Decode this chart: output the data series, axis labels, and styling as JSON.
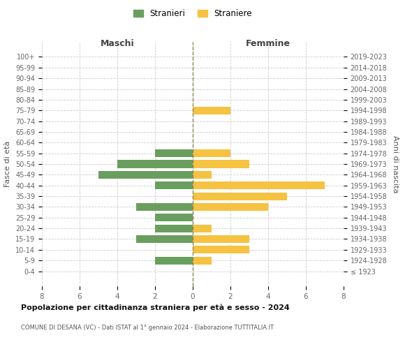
{
  "age_groups": [
    "100+",
    "95-99",
    "90-94",
    "85-89",
    "80-84",
    "75-79",
    "70-74",
    "65-69",
    "60-64",
    "55-59",
    "50-54",
    "45-49",
    "40-44",
    "35-39",
    "30-34",
    "25-29",
    "20-24",
    "15-19",
    "10-14",
    "5-9",
    "0-4"
  ],
  "birth_years": [
    "≤ 1923",
    "1924-1928",
    "1929-1933",
    "1934-1938",
    "1939-1943",
    "1944-1948",
    "1949-1953",
    "1954-1958",
    "1959-1963",
    "1964-1968",
    "1969-1973",
    "1974-1978",
    "1979-1983",
    "1984-1988",
    "1989-1993",
    "1994-1998",
    "1999-2003",
    "2004-2008",
    "2009-2013",
    "2014-2018",
    "2019-2023"
  ],
  "males": [
    0,
    0,
    0,
    0,
    0,
    0,
    0,
    0,
    0,
    2,
    4,
    5,
    2,
    0,
    3,
    2,
    2,
    3,
    0,
    2,
    0
  ],
  "females": [
    0,
    0,
    0,
    0,
    0,
    2,
    0,
    0,
    0,
    2,
    3,
    1,
    7,
    5,
    4,
    0,
    1,
    3,
    3,
    1,
    0
  ],
  "male_color": "#6a9e5e",
  "female_color": "#f5c242",
  "title": "Popolazione per cittadinanza straniera per età e sesso - 2024",
  "subtitle": "COMUNE DI DESANA (VC) - Dati ISTAT al 1° gennaio 2024 - Elaborazione TUTTITALIA.IT",
  "xlabel_left": "Maschi",
  "xlabel_right": "Femmine",
  "ylabel_left": "Fasce di età",
  "ylabel_right": "Anni di nascita",
  "legend_male": "Stranieri",
  "legend_female": "Straniere",
  "xlim": 8,
  "background_color": "#ffffff",
  "grid_color": "#cccccc"
}
